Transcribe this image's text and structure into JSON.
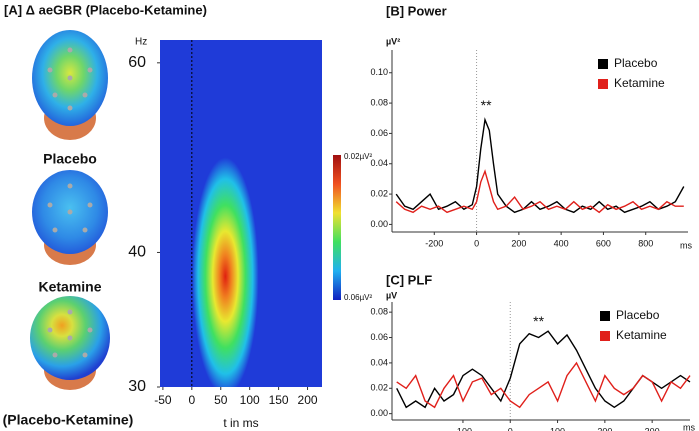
{
  "chart_data": [
    {
      "type": "heatmap",
      "title": "[A]  Δ aeGBR (Placebo-Ketamine)",
      "ylabel": "Hz",
      "xlabel": "t in ms",
      "topomap_labels": [
        "Placebo",
        "Ketamine",
        "(Placebo-Ketamine)"
      ],
      "colorbar_labels": [
        "0.02µV²",
        "0.06µV²"
      ],
      "xlim": [
        -55,
        225
      ],
      "xticks": [
        -50,
        0,
        50,
        100,
        150,
        200
      ],
      "ylim": [
        30,
        63
      ],
      "yticks": [
        30,
        40,
        60
      ],
      "log_y": true,
      "event_x": 0,
      "blob": {
        "x": [
          0,
          115
        ],
        "y": [
          30,
          49
        ],
        "peak_x": 58,
        "peak_y": 38
      }
    },
    {
      "type": "line",
      "title": "[B]  Power",
      "ylabel": "µV²",
      "xlabel": "ms",
      "legend": "upper right",
      "xlim": [
        -400,
        1000
      ],
      "xticks": [
        -200,
        0,
        200,
        400,
        600,
        800
      ],
      "ylim": [
        -0.005,
        0.115
      ],
      "yticks": [
        {
          "value": 0,
          "label": "0.00"
        },
        {
          "value": 0.02,
          "label": "0.02"
        },
        {
          "value": 0.04,
          "label": "0.04"
        },
        {
          "value": 0.06,
          "label": "0.06"
        },
        {
          "value": 0.08,
          "label": "0.08"
        },
        {
          "value": 0.1,
          "label": "0.10"
        }
      ],
      "event_x": 0,
      "annotation": {
        "text": "**",
        "x": 45,
        "y": 0.078
      },
      "x": [
        -380,
        -340,
        -300,
        -260,
        -220,
        -180,
        -140,
        -100,
        -60,
        -20,
        0,
        20,
        40,
        60,
        80,
        100,
        140,
        180,
        220,
        260,
        300,
        340,
        380,
        420,
        460,
        500,
        540,
        580,
        620,
        660,
        700,
        740,
        780,
        820,
        860,
        900,
        940,
        980
      ],
      "series": [
        {
          "name": "Placebo",
          "color": "#000000",
          "values": [
            0.02,
            0.012,
            0.01,
            0.015,
            0.02,
            0.01,
            0.012,
            0.015,
            0.01,
            0.013,
            0.025,
            0.05,
            0.069,
            0.062,
            0.04,
            0.02,
            0.012,
            0.008,
            0.01,
            0.015,
            0.01,
            0.012,
            0.015,
            0.01,
            0.008,
            0.012,
            0.01,
            0.015,
            0.01,
            0.012,
            0.008,
            0.01,
            0.012,
            0.015,
            0.01,
            0.012,
            0.015,
            0.025
          ]
        },
        {
          "name": "Ketamine",
          "color": "#e0201b",
          "values": [
            0.015,
            0.01,
            0.008,
            0.012,
            0.01,
            0.012,
            0.008,
            0.01,
            0.012,
            0.01,
            0.015,
            0.028,
            0.035,
            0.025,
            0.015,
            0.01,
            0.012,
            0.018,
            0.01,
            0.012,
            0.015,
            0.01,
            0.012,
            0.01,
            0.015,
            0.01,
            0.012,
            0.008,
            0.013,
            0.01,
            0.012,
            0.015,
            0.01,
            0.012,
            0.01,
            0.015,
            0.012,
            0.012
          ]
        }
      ]
    },
    {
      "type": "line",
      "title": "[C]  PLF",
      "ylabel": "µV",
      "xlabel": "ms",
      "legend": "upper right",
      "xlim": [
        -250,
        380
      ],
      "xticks": [
        -100,
        0,
        100,
        200,
        300
      ],
      "ylim": [
        -0.005,
        0.088
      ],
      "yticks": [
        {
          "value": 0,
          "label": "0.00"
        },
        {
          "value": 0.02,
          "label": "0.02"
        },
        {
          "value": 0.04,
          "label": "0.04"
        },
        {
          "value": 0.06,
          "label": "0.06"
        },
        {
          "value": 0.08,
          "label": "0.08"
        }
      ],
      "event_x": 0,
      "annotation": {
        "text": "**",
        "x": 60,
        "y": 0.072
      },
      "x": [
        -240,
        -220,
        -200,
        -180,
        -160,
        -140,
        -120,
        -100,
        -80,
        -60,
        -40,
        -20,
        0,
        20,
        40,
        60,
        80,
        100,
        120,
        140,
        160,
        180,
        200,
        220,
        240,
        260,
        280,
        300,
        320,
        340,
        360,
        380
      ],
      "series": [
        {
          "name": "Placebo",
          "color": "#000000",
          "values": [
            0.02,
            0.005,
            0.01,
            0.005,
            0.02,
            0.01,
            0.015,
            0.03,
            0.035,
            0.03,
            0.02,
            0.01,
            0.028,
            0.055,
            0.063,
            0.06,
            0.065,
            0.055,
            0.062,
            0.05,
            0.035,
            0.02,
            0.01,
            0.005,
            0.01,
            0.02,
            0.03,
            0.025,
            0.02,
            0.025,
            0.03,
            0.025
          ]
        },
        {
          "name": "Ketamine",
          "color": "#e0201b",
          "values": [
            0.025,
            0.02,
            0.03,
            0.01,
            0.005,
            0.02,
            0.03,
            0.01,
            0.025,
            0.028,
            0.015,
            0.02,
            0.01,
            0.005,
            0.015,
            0.02,
            0.025,
            0.01,
            0.03,
            0.04,
            0.025,
            0.01,
            0.03,
            0.02,
            0.015,
            0.02,
            0.03,
            0.025,
            0.01,
            0.025,
            0.02,
            0.03
          ]
        }
      ]
    }
  ]
}
